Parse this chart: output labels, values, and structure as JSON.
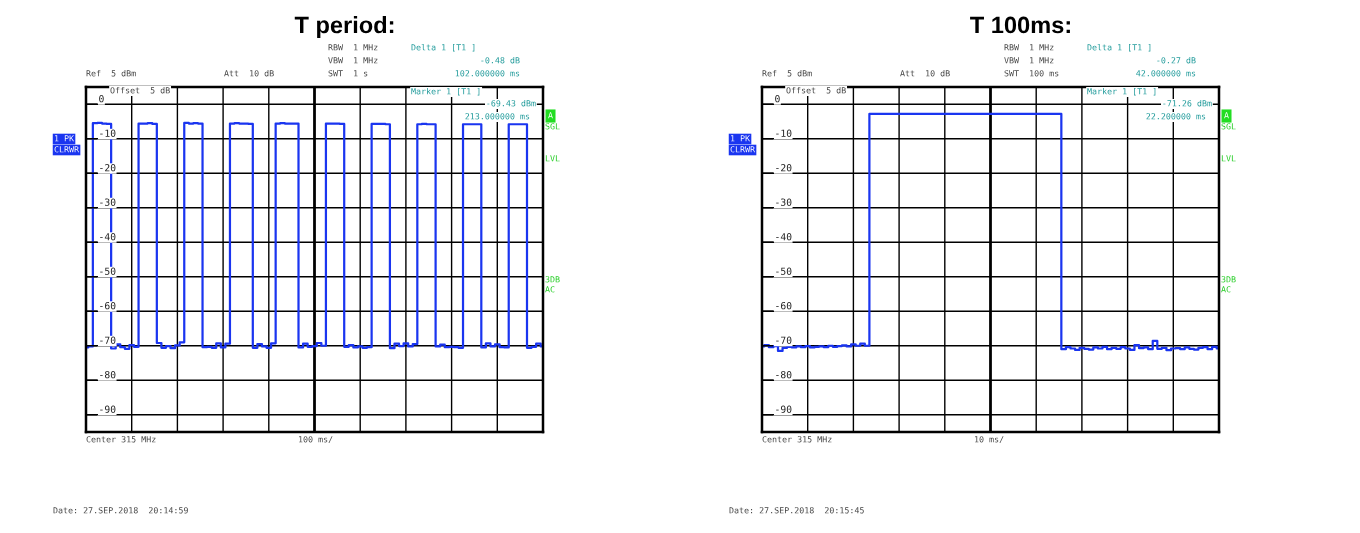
{
  "chart_data": [
    {
      "type": "step",
      "title": "T period:",
      "color": "#1a35f0",
      "tick_labels": "y",
      "grid": true,
      "categories": [
        null,
        null,
        null,
        null,
        null,
        null,
        null,
        null,
        null,
        null,
        null,
        null,
        null,
        null,
        null,
        null,
        null,
        null,
        null,
        null,
        null,
        null,
        null,
        null,
        null,
        null,
        null,
        null,
        null,
        null,
        null,
        null,
        null,
        null,
        null,
        null,
        null,
        null,
        null,
        null,
        null,
        null,
        null,
        null,
        null,
        null,
        null,
        null,
        null,
        null,
        null,
        null,
        null,
        null,
        null,
        null,
        null,
        null,
        null,
        null,
        null,
        null,
        null,
        null,
        null,
        null,
        null,
        null,
        null,
        null,
        null,
        null,
        null,
        null,
        null,
        null,
        null,
        null,
        null,
        null,
        null,
        null,
        null,
        null,
        null,
        null,
        null,
        null,
        null,
        null,
        null,
        null,
        null,
        null,
        null,
        null,
        null,
        null,
        null,
        null,
        null
      ],
      "values": [
        -70.5,
        -70.2,
        -5.5,
        -5.4,
        -5.6,
        -5.7,
        -70.8,
        -69.6,
        -70.4,
        -70.9,
        -69.8,
        -70.3,
        -5.6,
        -5.6,
        -5.5,
        -5.7,
        -69.2,
        -70.6,
        -70.1,
        -70.7,
        -69.9,
        -69.0,
        -5.4,
        -5.6,
        -5.5,
        -5.6,
        -70.4,
        -70.3,
        -70.6,
        -69.3,
        -70.5,
        -69.4,
        -5.6,
        -5.5,
        -5.6,
        -5.6,
        -5.7,
        -70.6,
        -69.5,
        -70.2,
        -70.6,
        -69.3,
        -5.6,
        -5.5,
        -5.6,
        -5.6,
        -5.6,
        -70.5,
        -69.4,
        -70.3,
        -70.1,
        -69.2,
        -70.0,
        -5.6,
        -5.6,
        -5.6,
        -5.7,
        -70.3,
        -69.8,
        -70.5,
        -70.2,
        -70.6,
        -70.4,
        -5.7,
        -5.7,
        -5.7,
        -5.8,
        -70.7,
        -69.4,
        -70.1,
        -69.3,
        -70.2,
        -69.5,
        -5.8,
        -5.7,
        -5.8,
        -5.8,
        -70.2,
        -69.7,
        -70.4,
        -70.3,
        -70.4,
        -70.6,
        -5.8,
        -5.8,
        -5.8,
        -5.8,
        -70.5,
        -69.3,
        -70.2,
        -69.6,
        -70.4,
        -70.5,
        -5.8,
        -5.8,
        -5.8,
        -5.8,
        -70.6,
        -70.3,
        -69.4,
        -70.2
      ],
      "ylim": [
        -95,
        5
      ],
      "yticks": [
        0,
        -10,
        -20,
        -30,
        -40,
        -50,
        -60,
        -70,
        -80,
        -90
      ],
      "annotations": [
        "RBW  1 MHz",
        "VBW  1 MHz",
        "SWT  1 s",
        "Ref  5 dBm",
        "Att  10 dB",
        "Delta 1 [T1 ]",
        "-0.48 dB",
        "102.000000 ms",
        "Offset  5 dB",
        "Marker 1 [T1 ]",
        "-69.43 dBm",
        "213.000000 ms",
        "1 PK",
        "CLRWR",
        "A",
        "SGL",
        "LVL",
        "3DB",
        "AC",
        "Center 315 MHz",
        "100 ms/",
        "Date: 27.SEP.2018  20:14:59"
      ]
    },
    {
      "type": "step",
      "title": "T 100ms:",
      "color": "#1a35f0",
      "tick_labels": "y",
      "grid": true,
      "categories": [
        null,
        null,
        null,
        null,
        null,
        null,
        null,
        null,
        null,
        null,
        null,
        null,
        null,
        null,
        null,
        null,
        null,
        null,
        null,
        null,
        null,
        null,
        null,
        null,
        null,
        null,
        null,
        null,
        null,
        null,
        null,
        null,
        null,
        null,
        null,
        null,
        null,
        null,
        null,
        null,
        null,
        null,
        null,
        null,
        null,
        null,
        null,
        null,
        null,
        null,
        null,
        null,
        null,
        null,
        null,
        null,
        null,
        null,
        null,
        null,
        null,
        null,
        null,
        null,
        null,
        null,
        null,
        null,
        null,
        null,
        null,
        null,
        null,
        null,
        null,
        null,
        null,
        null,
        null,
        null,
        null,
        null,
        null,
        null,
        null,
        null,
        null,
        null,
        null,
        null,
        null,
        null,
        null,
        null,
        null,
        null,
        null,
        null,
        null,
        null,
        null
      ],
      "values": [
        -70.2,
        -69.8,
        -70.4,
        -70.1,
        -71.5,
        -70.6,
        -70.3,
        -70.5,
        -70.2,
        -70.4,
        -70.1,
        -70.5,
        -70.3,
        -70.2,
        -70.4,
        -70.0,
        -70.3,
        -70.1,
        -69.9,
        -70.2,
        -69.6,
        -70.0,
        -69.4,
        -70.0,
        -2.8,
        -2.8,
        -2.8,
        -2.8,
        -2.8,
        -2.8,
        -2.8,
        -2.8,
        -2.8,
        -2.8,
        -2.8,
        -2.8,
        -2.8,
        -2.8,
        -2.8,
        -2.8,
        -2.8,
        -2.8,
        -2.8,
        -2.8,
        -2.8,
        -2.8,
        -2.8,
        -2.8,
        -2.8,
        -2.8,
        -2.8,
        -2.8,
        -2.8,
        -2.8,
        -2.8,
        -2.8,
        -2.8,
        -2.8,
        -2.8,
        -2.8,
        -2.8,
        -2.8,
        -2.8,
        -2.8,
        -2.8,
        -2.8,
        -71.0,
        -70.4,
        -70.8,
        -71.2,
        -70.6,
        -70.9,
        -71.1,
        -70.5,
        -70.8,
        -70.3,
        -71.0,
        -70.6,
        -70.9,
        -70.4,
        -70.8,
        -71.2,
        -69.8,
        -70.7,
        -70.5,
        -71.0,
        -68.6,
        -70.9,
        -70.6,
        -71.3,
        -70.8,
        -70.7,
        -71.0,
        -70.5,
        -70.9,
        -71.1,
        -70.6,
        -70.4,
        -71.0,
        -70.3,
        -70.8
      ],
      "ylim": [
        -95,
        5
      ],
      "yticks": [
        0,
        -10,
        -20,
        -30,
        -40,
        -50,
        -60,
        -70,
        -80,
        -90
      ],
      "annotations": [
        "RBW  1 MHz",
        "VBW  1 MHz",
        "SWT  100 ms",
        "Ref  5 dBm",
        "Att  10 dB",
        "Delta 1 [T1 ]",
        "-0.27 dB",
        "42.000000 ms",
        "Offset  5 dB",
        "Marker 1 [T1 ]",
        "-71.26 dBm",
        "22.200000 ms",
        "1 PK",
        "CLRWR",
        "A",
        "SGL",
        "LVL",
        "3DB",
        "AC",
        "Center 315 MHz",
        "10 ms/",
        "Date: 27.SEP.2018  20:15:45"
      ]
    }
  ]
}
